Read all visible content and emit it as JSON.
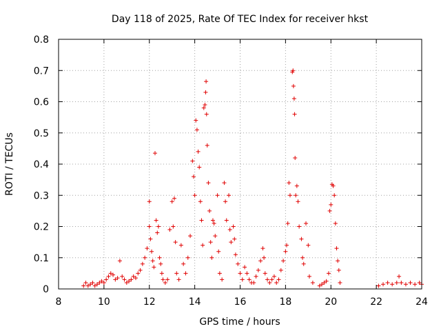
{
  "chart_data": {
    "type": "scatter",
    "title": "Day 118 of 2025, Rate Of TEC Index for receiver hkst",
    "xlabel": "GPS time / hours",
    "ylabel": "ROTI / TECUs",
    "xlim": [
      8,
      24
    ],
    "ylim": [
      0,
      0.8
    ],
    "x_ticks": [
      8,
      10,
      12,
      14,
      16,
      18,
      20,
      22,
      24
    ],
    "x_tick_labels": [
      "8",
      "10",
      "12",
      "14",
      "16",
      "18",
      "20",
      "22",
      "24"
    ],
    "y_ticks": [
      0,
      0.1,
      0.2,
      0.3,
      0.4,
      0.5,
      0.6,
      0.7,
      0.8
    ],
    "y_tick_labels": [
      "0",
      "0.1",
      "0.2",
      "0.3",
      "0.4",
      "0.5",
      "0.6",
      "0.7",
      "0.8"
    ],
    "grid": true,
    "marker": "plus",
    "marker_color": "#e00000",
    "points": [
      [
        9.1,
        0.01
      ],
      [
        9.2,
        0.02
      ],
      [
        9.3,
        0.01
      ],
      [
        9.4,
        0.015
      ],
      [
        9.5,
        0.02
      ],
      [
        9.6,
        0.01
      ],
      [
        9.7,
        0.015
      ],
      [
        9.8,
        0.02
      ],
      [
        9.9,
        0.025
      ],
      [
        10.0,
        0.02
      ],
      [
        10.1,
        0.03
      ],
      [
        10.2,
        0.04
      ],
      [
        10.3,
        0.05
      ],
      [
        10.4,
        0.045
      ],
      [
        10.5,
        0.03
      ],
      [
        10.6,
        0.035
      ],
      [
        10.7,
        0.09
      ],
      [
        10.8,
        0.04
      ],
      [
        10.9,
        0.03
      ],
      [
        11.0,
        0.02
      ],
      [
        11.1,
        0.025
      ],
      [
        11.2,
        0.03
      ],
      [
        11.3,
        0.04
      ],
      [
        11.4,
        0.035
      ],
      [
        11.5,
        0.05
      ],
      [
        11.6,
        0.06
      ],
      [
        11.7,
        0.08
      ],
      [
        11.8,
        0.1
      ],
      [
        11.9,
        0.13
      ],
      [
        12.0,
        0.28
      ],
      [
        12.0,
        0.2
      ],
      [
        12.05,
        0.16
      ],
      [
        12.1,
        0.12
      ],
      [
        12.15,
        0.09
      ],
      [
        12.2,
        0.07
      ],
      [
        12.25,
        0.435
      ],
      [
        12.3,
        0.22
      ],
      [
        12.35,
        0.18
      ],
      [
        12.4,
        0.2
      ],
      [
        12.45,
        0.1
      ],
      [
        12.5,
        0.08
      ],
      [
        12.55,
        0.05
      ],
      [
        12.6,
        0.03
      ],
      [
        12.7,
        0.02
      ],
      [
        12.8,
        0.03
      ],
      [
        12.9,
        0.19
      ],
      [
        13.0,
        0.28
      ],
      [
        13.05,
        0.2
      ],
      [
        13.1,
        0.29
      ],
      [
        13.15,
        0.15
      ],
      [
        13.2,
        0.05
      ],
      [
        13.3,
        0.03
      ],
      [
        13.4,
        0.14
      ],
      [
        13.5,
        0.08
      ],
      [
        13.6,
        0.05
      ],
      [
        13.7,
        0.1
      ],
      [
        13.8,
        0.17
      ],
      [
        13.9,
        0.41
      ],
      [
        13.95,
        0.36
      ],
      [
        14.0,
        0.3
      ],
      [
        14.05,
        0.54
      ],
      [
        14.1,
        0.51
      ],
      [
        14.15,
        0.44
      ],
      [
        14.2,
        0.39
      ],
      [
        14.25,
        0.28
      ],
      [
        14.3,
        0.22
      ],
      [
        14.35,
        0.14
      ],
      [
        14.4,
        0.58
      ],
      [
        14.45,
        0.59
      ],
      [
        14.48,
        0.63
      ],
      [
        14.5,
        0.665
      ],
      [
        14.52,
        0.56
      ],
      [
        14.55,
        0.46
      ],
      [
        14.6,
        0.34
      ],
      [
        14.65,
        0.25
      ],
      [
        14.7,
        0.15
      ],
      [
        14.75,
        0.1
      ],
      [
        14.8,
        0.22
      ],
      [
        14.85,
        0.21
      ],
      [
        14.9,
        0.17
      ],
      [
        15.0,
        0.3
      ],
      [
        15.05,
        0.12
      ],
      [
        15.1,
        0.05
      ],
      [
        15.2,
        0.03
      ],
      [
        15.3,
        0.34
      ],
      [
        15.35,
        0.28
      ],
      [
        15.4,
        0.22
      ],
      [
        15.5,
        0.3
      ],
      [
        15.55,
        0.19
      ],
      [
        15.6,
        0.15
      ],
      [
        15.7,
        0.2
      ],
      [
        15.75,
        0.16
      ],
      [
        15.8,
        0.11
      ],
      [
        15.9,
        0.08
      ],
      [
        16.0,
        0.05
      ],
      [
        16.1,
        0.03
      ],
      [
        16.2,
        0.07
      ],
      [
        16.3,
        0.05
      ],
      [
        16.4,
        0.03
      ],
      [
        16.5,
        0.02
      ],
      [
        16.6,
        0.02
      ],
      [
        16.7,
        0.04
      ],
      [
        16.8,
        0.06
      ],
      [
        16.9,
        0.09
      ],
      [
        17.0,
        0.13
      ],
      [
        17.05,
        0.1
      ],
      [
        17.1,
        0.05
      ],
      [
        17.2,
        0.03
      ],
      [
        17.3,
        0.02
      ],
      [
        17.4,
        0.03
      ],
      [
        17.5,
        0.04
      ],
      [
        17.6,
        0.02
      ],
      [
        17.7,
        0.03
      ],
      [
        17.8,
        0.06
      ],
      [
        17.9,
        0.09
      ],
      [
        18.0,
        0.12
      ],
      [
        18.05,
        0.14
      ],
      [
        18.1,
        0.21
      ],
      [
        18.15,
        0.34
      ],
      [
        18.2,
        0.3
      ],
      [
        18.3,
        0.695
      ],
      [
        18.33,
        0.7
      ],
      [
        18.35,
        0.65
      ],
      [
        18.38,
        0.61
      ],
      [
        18.4,
        0.56
      ],
      [
        18.42,
        0.42
      ],
      [
        18.45,
        0.3
      ],
      [
        18.5,
        0.33
      ],
      [
        18.55,
        0.28
      ],
      [
        18.6,
        0.2
      ],
      [
        18.7,
        0.16
      ],
      [
        18.75,
        0.1
      ],
      [
        18.8,
        0.08
      ],
      [
        18.9,
        0.21
      ],
      [
        19.0,
        0.14
      ],
      [
        19.05,
        0.04
      ],
      [
        19.2,
        0.02
      ],
      [
        19.5,
        0.01
      ],
      [
        19.6,
        0.015
      ],
      [
        19.7,
        0.02
      ],
      [
        19.8,
        0.025
      ],
      [
        19.9,
        0.05
      ],
      [
        19.95,
        0.25
      ],
      [
        20.0,
        0.27
      ],
      [
        20.05,
        0.335
      ],
      [
        20.1,
        0.33
      ],
      [
        20.15,
        0.3
      ],
      [
        20.2,
        0.21
      ],
      [
        20.25,
        0.13
      ],
      [
        20.3,
        0.09
      ],
      [
        20.35,
        0.06
      ],
      [
        20.4,
        0.02
      ],
      [
        22.1,
        0.01
      ],
      [
        22.3,
        0.015
      ],
      [
        22.5,
        0.02
      ],
      [
        22.7,
        0.015
      ],
      [
        22.9,
        0.02
      ],
      [
        23.0,
        0.04
      ],
      [
        23.1,
        0.02
      ],
      [
        23.3,
        0.015
      ],
      [
        23.5,
        0.02
      ],
      [
        23.7,
        0.015
      ],
      [
        23.9,
        0.02
      ],
      [
        24.0,
        0.015
      ]
    ]
  }
}
